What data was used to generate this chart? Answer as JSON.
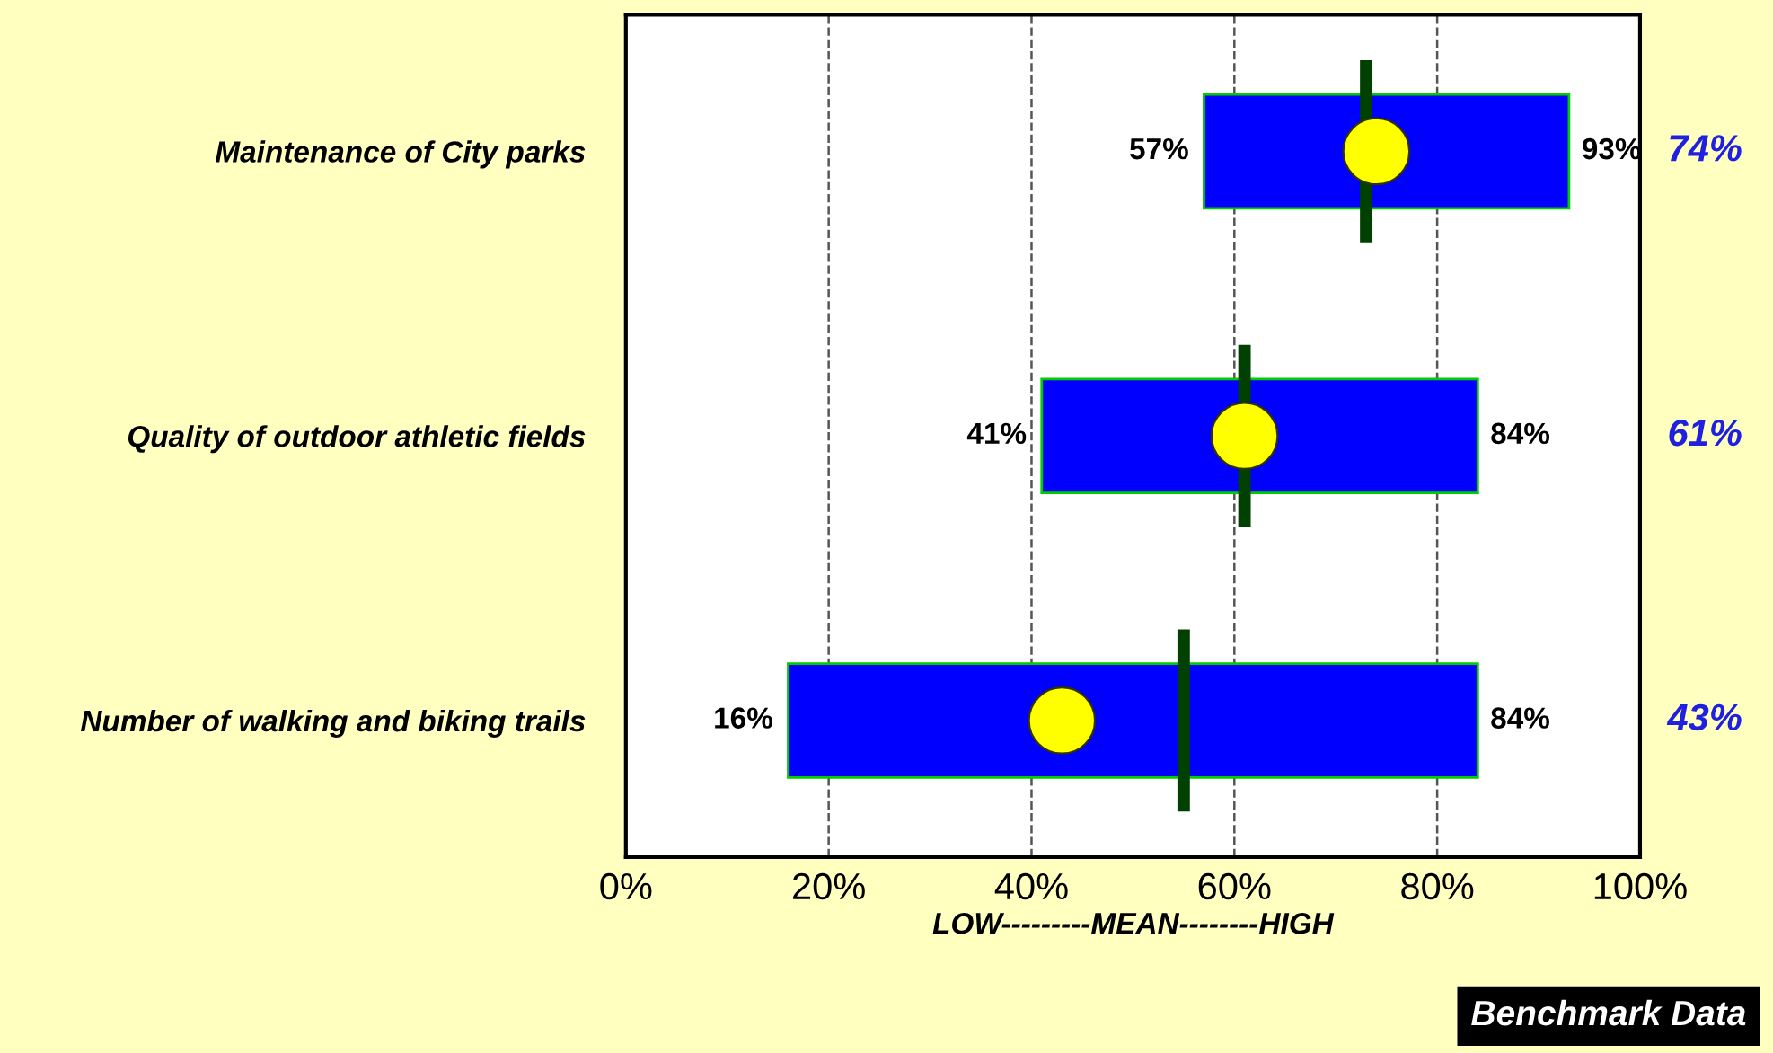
{
  "chart_data": {
    "type": "bar",
    "orientation": "horizontal",
    "categories": [
      "Maintenance of City parks",
      "Quality of outdoor athletic fields",
      "Number of walking and biking trails"
    ],
    "series": [
      {
        "color": "#0000ff",
        "base": [
          57,
          41,
          16
        ],
        "values": [
          36,
          43,
          68
        ],
        "value_labels": [
          "93%",
          "84%",
          "84%"
        ]
      },
      {
        "type": "scatter",
        "marker": "circle",
        "color": "#ffff00",
        "x": [
          "Maintenance of City parks",
          "Quality of outdoor athletic fields",
          "Number of walking and biking trails"
        ],
        "values": [
          74,
          61,
          43
        ],
        "value_labels": [
          "74%",
          "61%",
          "43%"
        ]
      }
    ],
    "xlim": [
      0,
      100
    ],
    "xticks": [
      {
        "value": 0,
        "label": "0%"
      },
      {
        "value": 20,
        "label": "20%"
      },
      {
        "value": 40,
        "label": "40%"
      },
      {
        "value": 60,
        "label": "60%"
      },
      {
        "value": 80,
        "label": "80%"
      },
      {
        "value": 100,
        "label": "100%"
      }
    ],
    "xlabel": "LOW---------MEAN--------HIGH",
    "ref_lines": [
      {
        "axis": "x",
        "value": 73,
        "color": "#004000"
      },
      {
        "axis": "x",
        "value": 61,
        "color": "#004000"
      },
      {
        "axis": "x",
        "value": 55,
        "color": "#004000"
      }
    ],
    "grid": "x",
    "line_style": "dashed",
    "annotations": [
      {
        "text": "57%",
        "x": 57,
        "y": "Maintenance of City parks"
      },
      {
        "text": "41%",
        "x": 41,
        "y": "Quality of outdoor athletic fields"
      },
      {
        "text": "16%",
        "x": 16,
        "y": "Number of walking and biking trails"
      },
      "Benchmark Data"
    ]
  }
}
